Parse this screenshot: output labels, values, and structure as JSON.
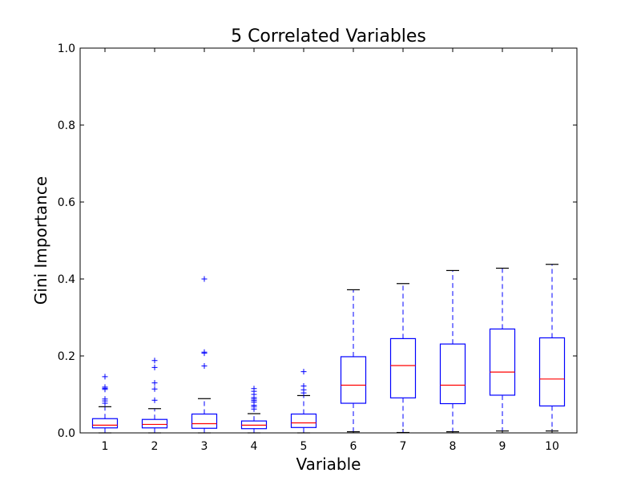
{
  "chart_data": {
    "type": "box",
    "title": "5 Correlated Variables",
    "xlabel": "Variable",
    "ylabel": "Gini Importance",
    "ylim": [
      0.0,
      1.0
    ],
    "yticks": [
      "0.0",
      "0.2",
      "0.4",
      "0.6",
      "0.8",
      "1.0"
    ],
    "grid": false,
    "colors": {
      "box": "#0000ff",
      "median": "#ff0000",
      "whisker": "#0000ff",
      "cap": "#000000",
      "flier": "#0000ff",
      "axes": "#000000"
    },
    "boxes": [
      {
        "label": "1",
        "whislo": 0.0,
        "q1": 0.013,
        "med": 0.02,
        "q3": 0.037,
        "whishi": 0.068,
        "fliers": [
          0.077,
          0.083,
          0.088,
          0.113,
          0.116,
          0.119,
          0.146
        ]
      },
      {
        "label": "2",
        "whislo": 0.0,
        "q1": 0.013,
        "med": 0.022,
        "q3": 0.035,
        "whishi": 0.063,
        "fliers": [
          0.085,
          0.114,
          0.13,
          0.17,
          0.188
        ]
      },
      {
        "label": "3",
        "whislo": 0.0,
        "q1": 0.012,
        "med": 0.024,
        "q3": 0.049,
        "whishi": 0.089,
        "fliers": [
          0.174,
          0.207,
          0.21,
          0.4
        ]
      },
      {
        "label": "4",
        "whislo": 0.0,
        "q1": 0.011,
        "med": 0.02,
        "q3": 0.031,
        "whishi": 0.05,
        "fliers": [
          0.062,
          0.068,
          0.072,
          0.08,
          0.084,
          0.088,
          0.092,
          0.1,
          0.108,
          0.115
        ]
      },
      {
        "label": "5",
        "whislo": 0.0,
        "q1": 0.014,
        "med": 0.026,
        "q3": 0.049,
        "whishi": 0.097,
        "fliers": [
          0.104,
          0.112,
          0.122,
          0.159
        ]
      },
      {
        "label": "6",
        "whislo": 0.003,
        "q1": 0.077,
        "med": 0.124,
        "q3": 0.198,
        "whishi": 0.372,
        "fliers": []
      },
      {
        "label": "7",
        "whislo": 0.001,
        "q1": 0.091,
        "med": 0.175,
        "q3": 0.245,
        "whishi": 0.388,
        "fliers": []
      },
      {
        "label": "8",
        "whislo": 0.003,
        "q1": 0.076,
        "med": 0.124,
        "q3": 0.231,
        "whishi": 0.422,
        "fliers": []
      },
      {
        "label": "9",
        "whislo": 0.005,
        "q1": 0.098,
        "med": 0.158,
        "q3": 0.27,
        "whishi": 0.428,
        "fliers": []
      },
      {
        "label": "10",
        "whislo": 0.005,
        "q1": 0.07,
        "med": 0.14,
        "q3": 0.247,
        "whishi": 0.438,
        "fliers": []
      }
    ]
  }
}
